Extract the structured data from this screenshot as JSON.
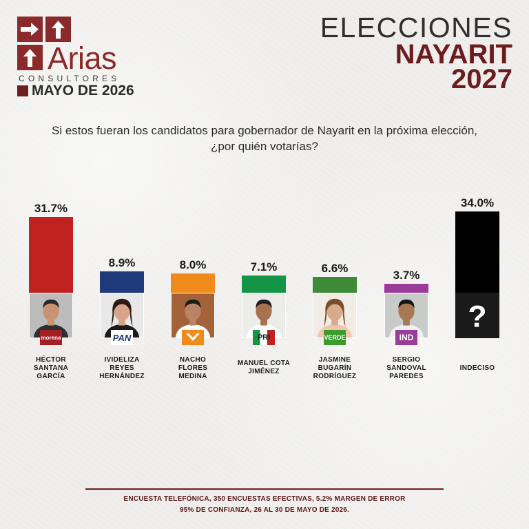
{
  "logo": {
    "brand": "Arias",
    "subtitle": "CONSULTORES",
    "date": "MAYO DE 2026"
  },
  "title": {
    "line1": "ELECCIONES",
    "line2": "NAYARIT",
    "line3": "2027"
  },
  "question": {
    "line1": "Si estos fueran los candidatos para gobernador de Nayarit en la próxima elección,",
    "line2": "¿por quién votarías?"
  },
  "chart_data": {
    "type": "bar",
    "categories": [
      "HÉCTOR SANTANA GARCÍA",
      "IVIDELIZA REYES HERNÁNDEZ",
      "NACHO FLORES MEDINA",
      "MANUEL COTA JIMÉNEZ",
      "JASMINE BUGARÍN RODRÍGUEZ",
      "SERGIO SANDOVAL PAREDES",
      "INDECISO"
    ],
    "values": [
      31.7,
      8.9,
      8.0,
      7.1,
      6.6,
      3.7,
      34.0
    ],
    "value_labels": [
      "31.7%",
      "8.9%",
      "8.0%",
      "7.1%",
      "6.6%",
      "3.7%",
      "34.0%"
    ],
    "name_lines": [
      [
        "HÉCTOR",
        "SANTANA",
        "GARCÍA"
      ],
      [
        "IVIDELIZA",
        "REYES",
        "HERNÁNDEZ"
      ],
      [
        "NACHO",
        "FLORES",
        "MEDINA"
      ],
      [
        "MANUEL COTA",
        "JIMÉNEZ"
      ],
      [
        "JASMINE",
        "BUGARÍN",
        "RODRÍGUEZ"
      ],
      [
        "SERGIO",
        "SANDOVAL",
        "PAREDES"
      ],
      [
        "INDECISO"
      ]
    ],
    "parties": [
      "morena",
      "PAN",
      "MC",
      "PRI",
      "VERDE",
      "IND",
      ""
    ],
    "colors": [
      "#c0221f",
      "#1e3a7b",
      "#f08a1a",
      "#149447",
      "#3d8b37",
      "#9a3c9a",
      "#000000"
    ],
    "ylim": [
      0,
      34.0
    ]
  },
  "footer": {
    "line1": "ENCUESTA TELEFÓNICA, 350 ENCUESTAS EFECTIVAS, 5.2%  MARGEN DE ERROR",
    "line2": "95% DE CONFIANZA, 26 AL 30 DE MAYO DE 2026."
  }
}
